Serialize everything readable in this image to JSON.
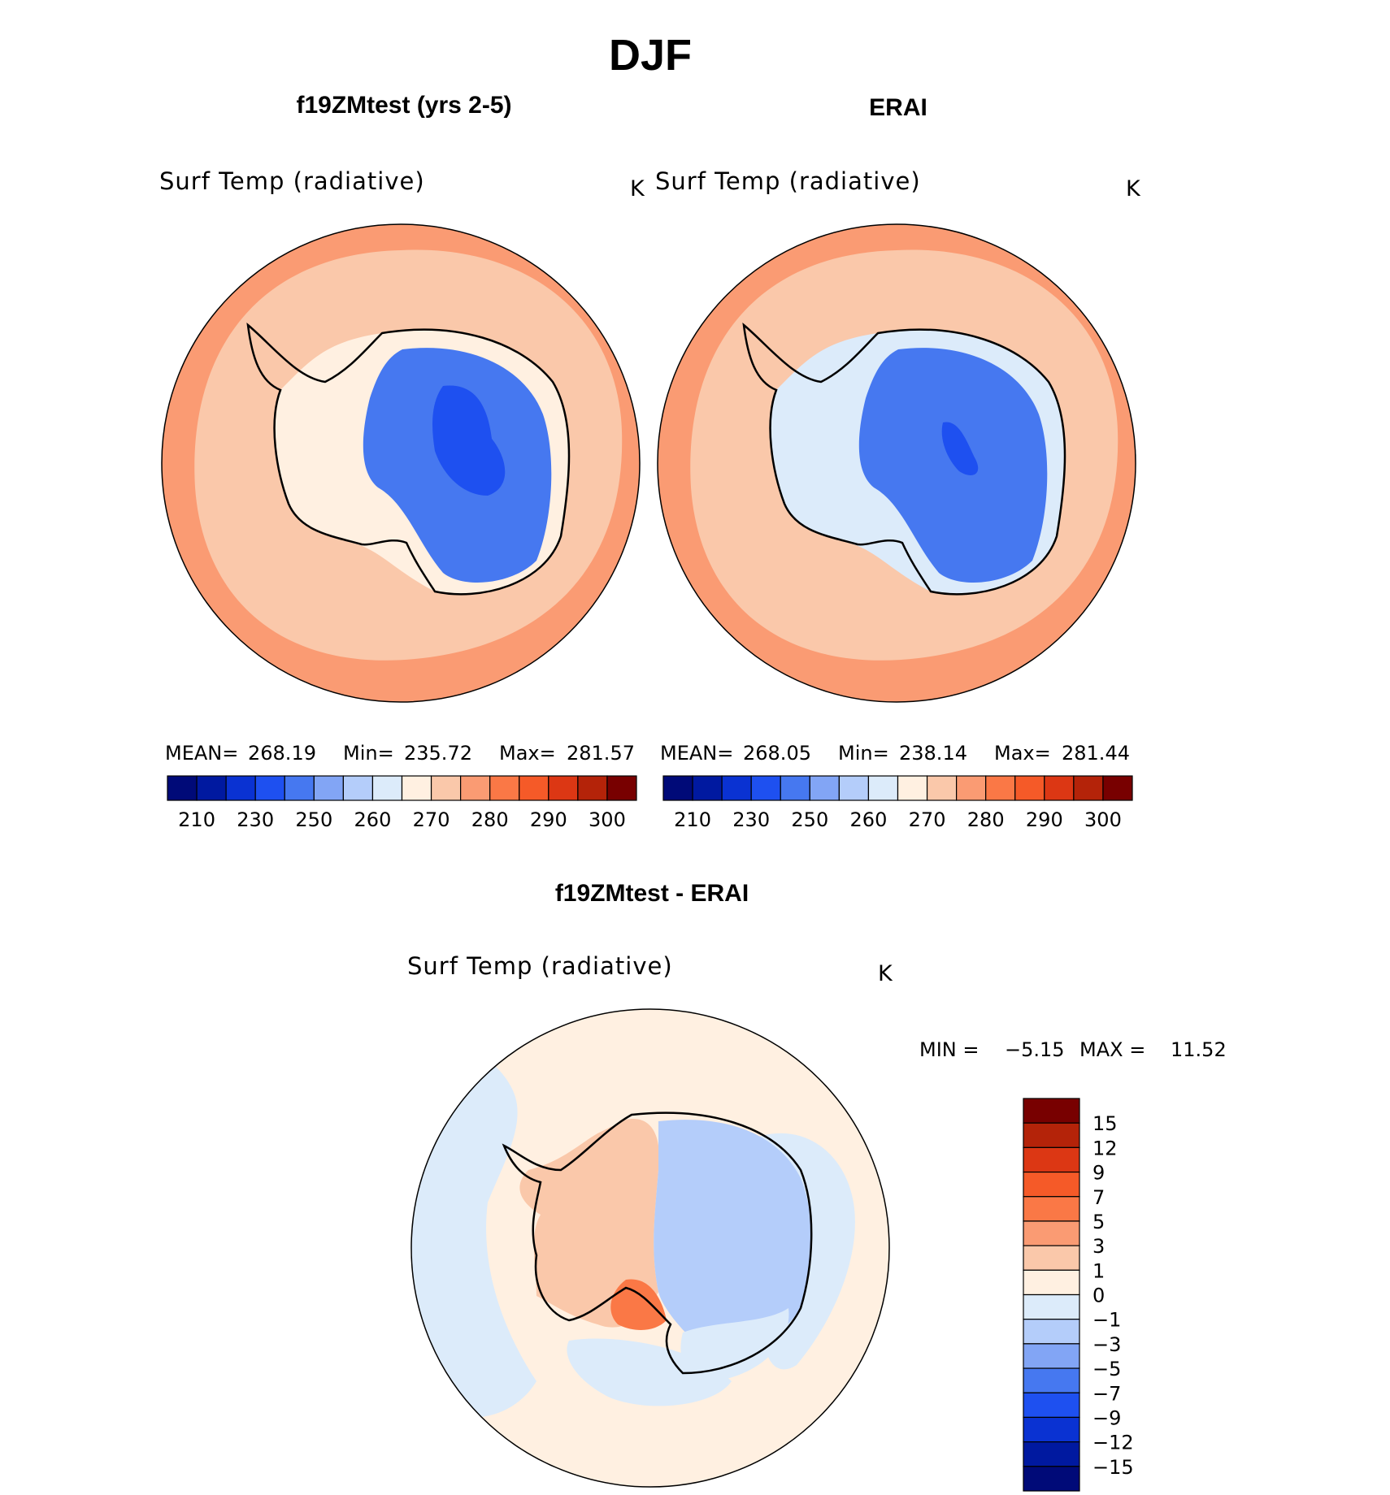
{
  "page": {
    "title": "DJF",
    "panels": [
      {
        "id": "model",
        "header": "f19ZMtest (yrs 2-5)",
        "variable": "Surf Temp (radiative)",
        "units": "K",
        "stats": {
          "mean_label": "MEAN=",
          "mean": "268.19",
          "min_label": "Min=",
          "min": "235.72",
          "max_label": "Max=",
          "max": "281.57"
        }
      },
      {
        "id": "obs",
        "header": "ERAI",
        "variable": "Surf Temp (radiative)",
        "units": "K",
        "stats": {
          "mean_label": "MEAN=",
          "mean": "268.05",
          "min_label": "Min=",
          "min": "238.14",
          "max_label": "Max=",
          "max": "281.44"
        }
      }
    ],
    "diff": {
      "header": "f19ZMtest - ERAI",
      "variable": "Surf Temp (radiative)",
      "units": "K",
      "minmax": {
        "min_label": "MIN =",
        "min": "−5.15",
        "max_label": "MAX =",
        "max": "11.52"
      }
    }
  },
  "chart_data": [
    {
      "type": "heatmap",
      "projection": "south-polar-stereographic",
      "title": "f19ZMtest (yrs 2-5)",
      "variable": "Surf Temp (radiative)",
      "units": "K",
      "stats": {
        "mean": 268.19,
        "min": 235.72,
        "max": 281.57
      },
      "colorbar": {
        "orientation": "horizontal",
        "tick_labels": [
          "210",
          "230",
          "250",
          "260",
          "270",
          "280",
          "290",
          "300"
        ],
        "colors": [
          "#000a78",
          "#0019a0",
          "#0a32d2",
          "#1e50f0",
          "#4678f0",
          "#82a5f5",
          "#b4cdfa",
          "#dcebfa",
          "#fff0e1",
          "#fac8aa",
          "#fa9b73",
          "#fa7846",
          "#f55a28",
          "#dc3714",
          "#b42309",
          "#780000"
        ]
      },
      "regions": {
        "outer_ring": "#fa9b73",
        "ocean": "#fac8aa",
        "coast": "#fff0e1",
        "interior": "#4678f0",
        "core": "#1e50f0"
      }
    },
    {
      "type": "heatmap",
      "projection": "south-polar-stereographic",
      "title": "ERAI",
      "variable": "Surf Temp (radiative)",
      "units": "K",
      "stats": {
        "mean": 268.05,
        "min": 238.14,
        "max": 281.44
      },
      "colorbar": {
        "orientation": "horizontal",
        "tick_labels": [
          "210",
          "230",
          "250",
          "260",
          "270",
          "280",
          "290",
          "300"
        ],
        "colors": [
          "#000a78",
          "#0019a0",
          "#0a32d2",
          "#1e50f0",
          "#4678f0",
          "#82a5f5",
          "#b4cdfa",
          "#dcebfa",
          "#fff0e1",
          "#fac8aa",
          "#fa9b73",
          "#fa7846",
          "#f55a28",
          "#dc3714",
          "#b42309",
          "#780000"
        ]
      },
      "regions": {
        "outer_ring": "#fa9b73",
        "ocean": "#fac8aa",
        "coast": "#dcebfa",
        "interior": "#4678f0",
        "core": "#1e50f0"
      }
    },
    {
      "type": "heatmap",
      "projection": "south-polar-stereographic",
      "title": "f19ZMtest - ERAI",
      "variable": "Surf Temp (radiative)",
      "units": "K",
      "stats": {
        "min": -5.15,
        "max": 11.52
      },
      "colorbar": {
        "orientation": "vertical",
        "tick_labels_top_to_bottom": [
          "15",
          "12",
          "9",
          "7",
          "5",
          "3",
          "1",
          "0",
          "−1",
          "−3",
          "−5",
          "−7",
          "−9",
          "−12",
          "−15"
        ],
        "colors_top_to_bottom": [
          "#780000",
          "#b42309",
          "#dc3714",
          "#f55a28",
          "#fa7846",
          "#fa9b73",
          "#fac8aa",
          "#fff0e1",
          "#dcebfa",
          "#b4cdfa",
          "#82a5f5",
          "#4678f0",
          "#1e50f0",
          "#0a32d2",
          "#0019a0",
          "#000a78"
        ]
      },
      "regions": {
        "ocean": "#fff0e1",
        "ocean_patches": "#dcebfa",
        "west_antarctica": "#fac8aa",
        "west_hotspot": "#fa7846",
        "east_antarctica": "#b4cdfa",
        "east_coast": "#dcebfa"
      }
    }
  ]
}
